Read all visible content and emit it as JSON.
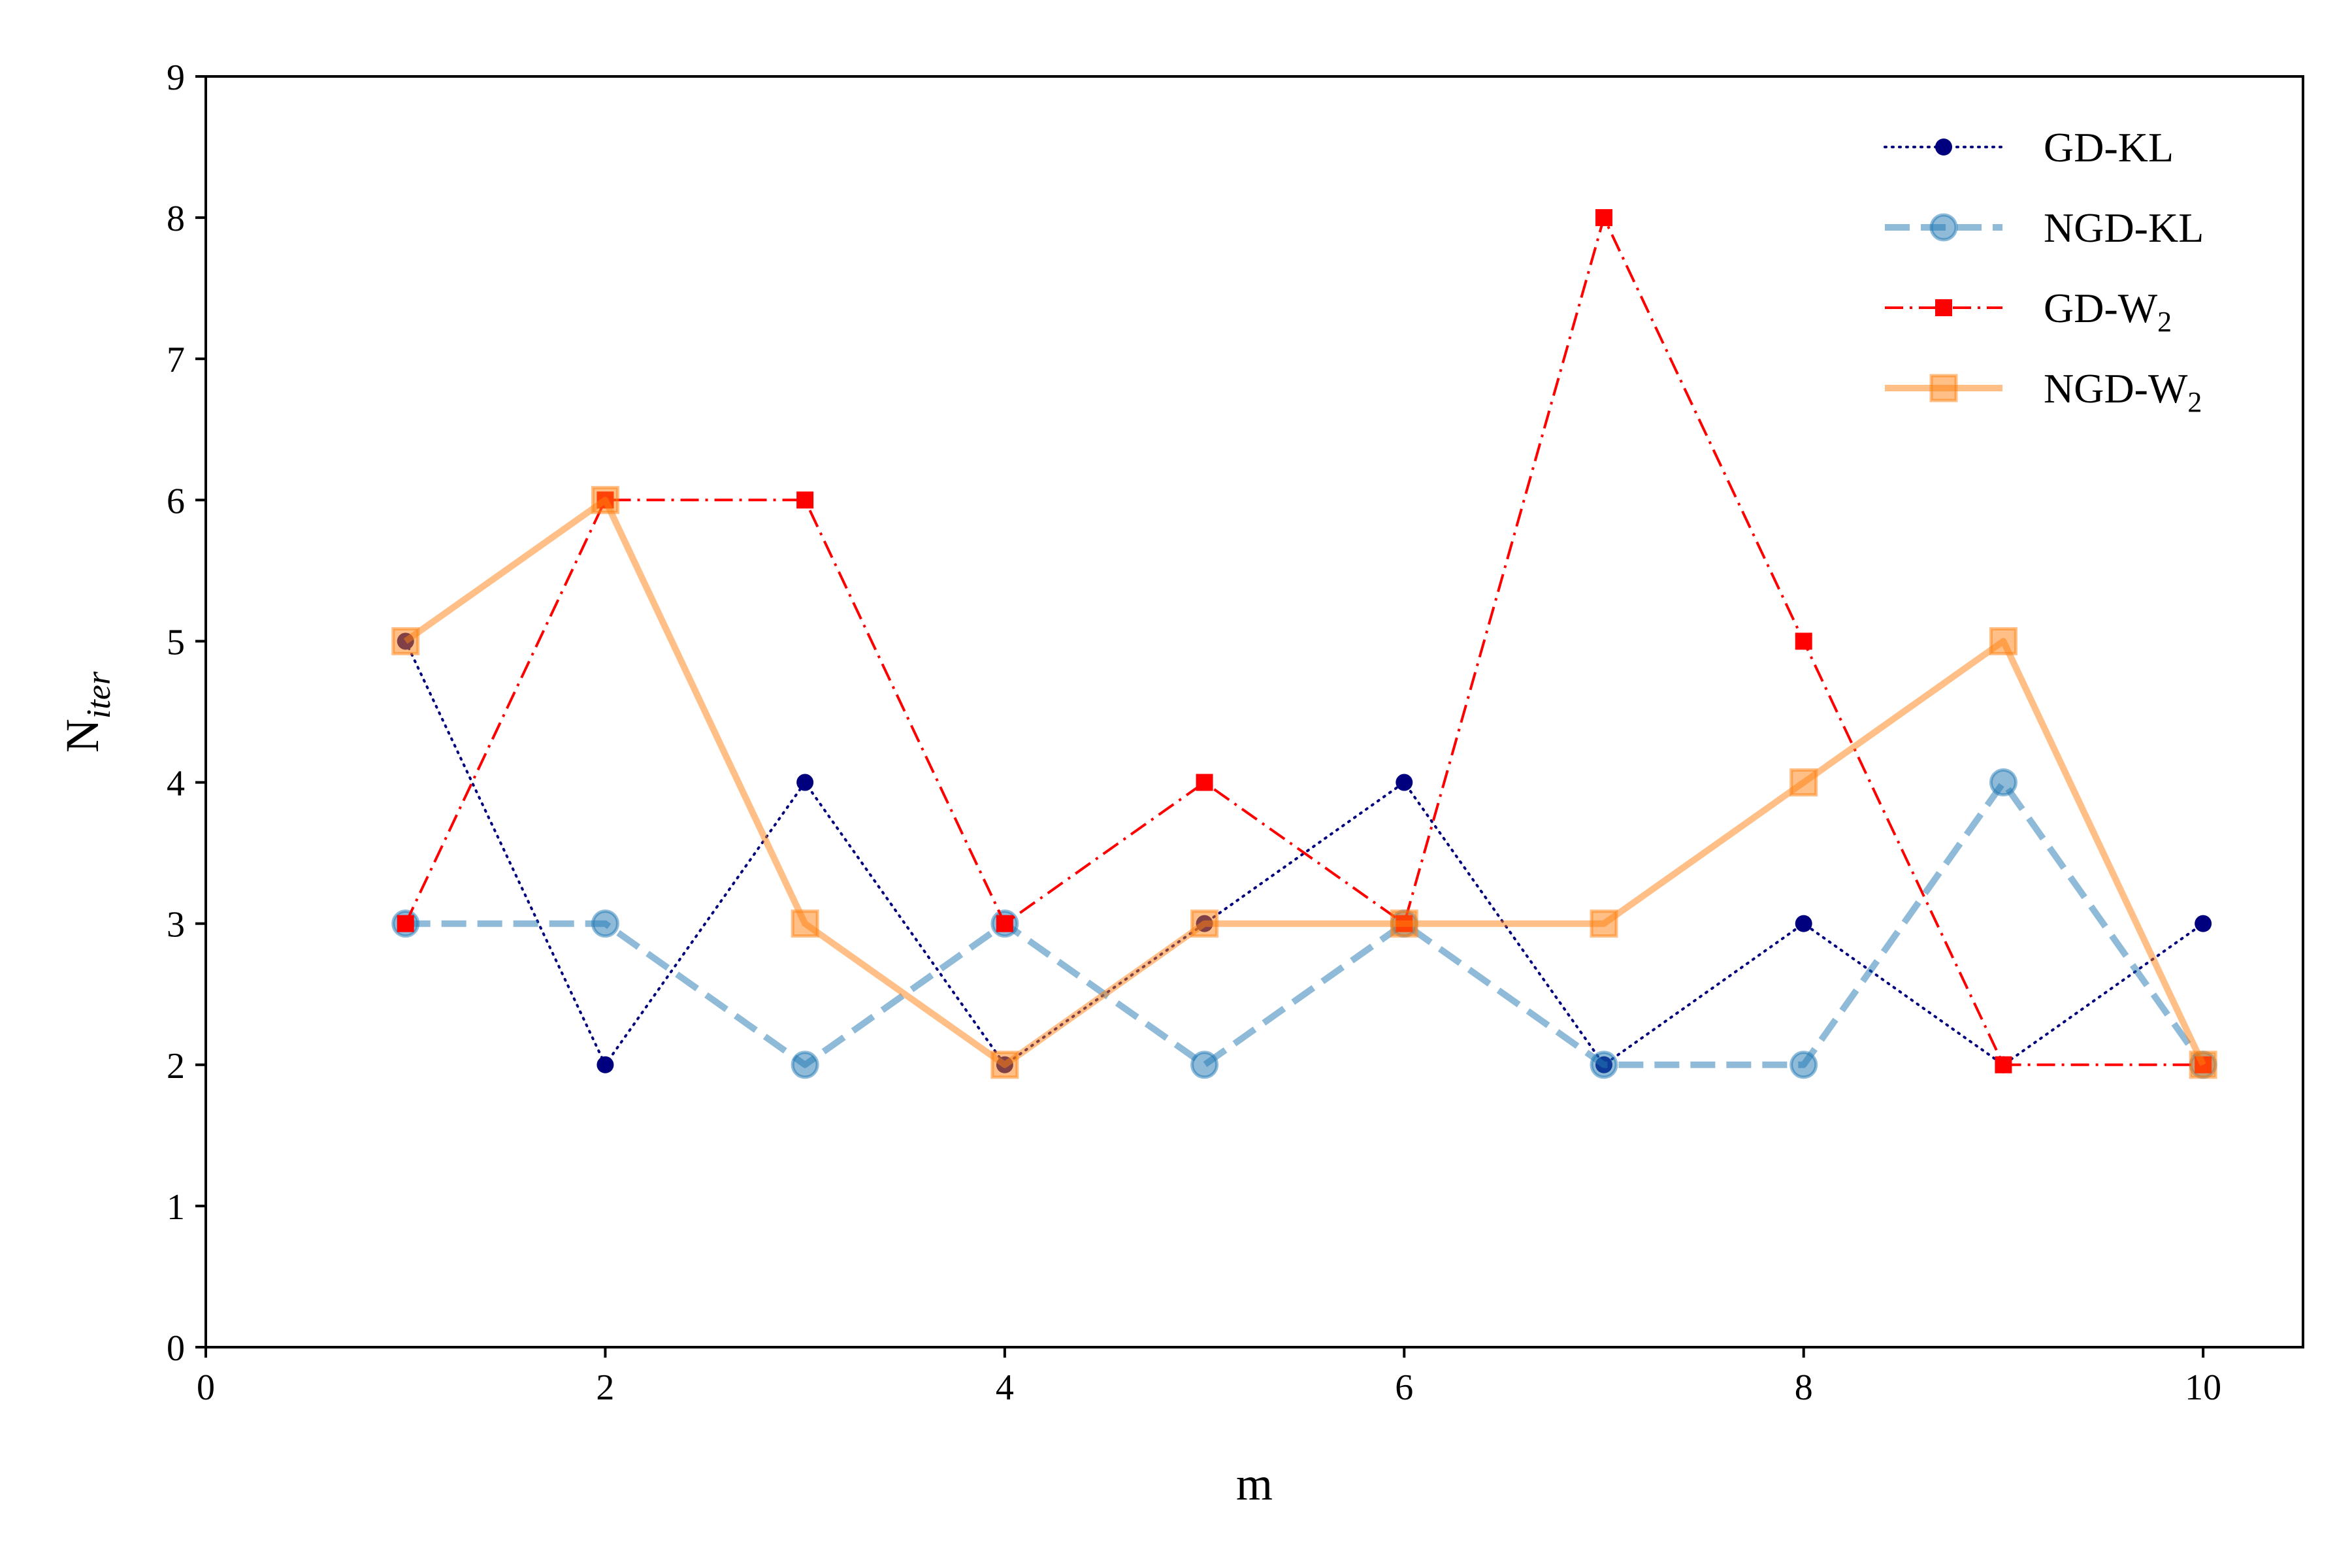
{
  "chart_data": {
    "type": "line",
    "title": "",
    "xlabel": "m",
    "ylabel": {
      "main": "N",
      "sub": "iter"
    },
    "xlim": [
      0,
      10.5
    ],
    "ylim": [
      0,
      9
    ],
    "xticks": [
      0,
      2,
      4,
      6,
      8,
      10
    ],
    "yticks": [
      0,
      1,
      2,
      3,
      4,
      5,
      6,
      7,
      8,
      9
    ],
    "grid": false,
    "legend_position": "top-right",
    "x": [
      1,
      2,
      3,
      4,
      5,
      6,
      7,
      8,
      9,
      10
    ],
    "series": [
      {
        "name": "GD-KL",
        "name_main": "GD-KL",
        "name_sub": "",
        "values": [
          5,
          2,
          4,
          2,
          3,
          4,
          2,
          3,
          2,
          3
        ],
        "color": "#00007f",
        "style": "dotted",
        "marker": "dot"
      },
      {
        "name": "NGD-KL",
        "name_main": "NGD-KL",
        "name_sub": "",
        "values": [
          3,
          3,
          2,
          3,
          2,
          3,
          2,
          2,
          4,
          2
        ],
        "color": "#1f77b4",
        "style": "dashed",
        "marker": "circle"
      },
      {
        "name": "GD-W2",
        "name_main": "GD-W",
        "name_sub": "2",
        "values": [
          3,
          6,
          6,
          3,
          4,
          3,
          8,
          5,
          2,
          2
        ],
        "color": "#ff0000",
        "style": "dashdot",
        "marker": "square-small"
      },
      {
        "name": "NGD-W2",
        "name_main": "NGD-W",
        "name_sub": "2",
        "values": [
          5,
          6,
          3,
          2,
          3,
          3,
          3,
          4,
          5,
          2
        ],
        "color": "#ff7f0e",
        "style": "solid",
        "marker": "square"
      }
    ]
  }
}
